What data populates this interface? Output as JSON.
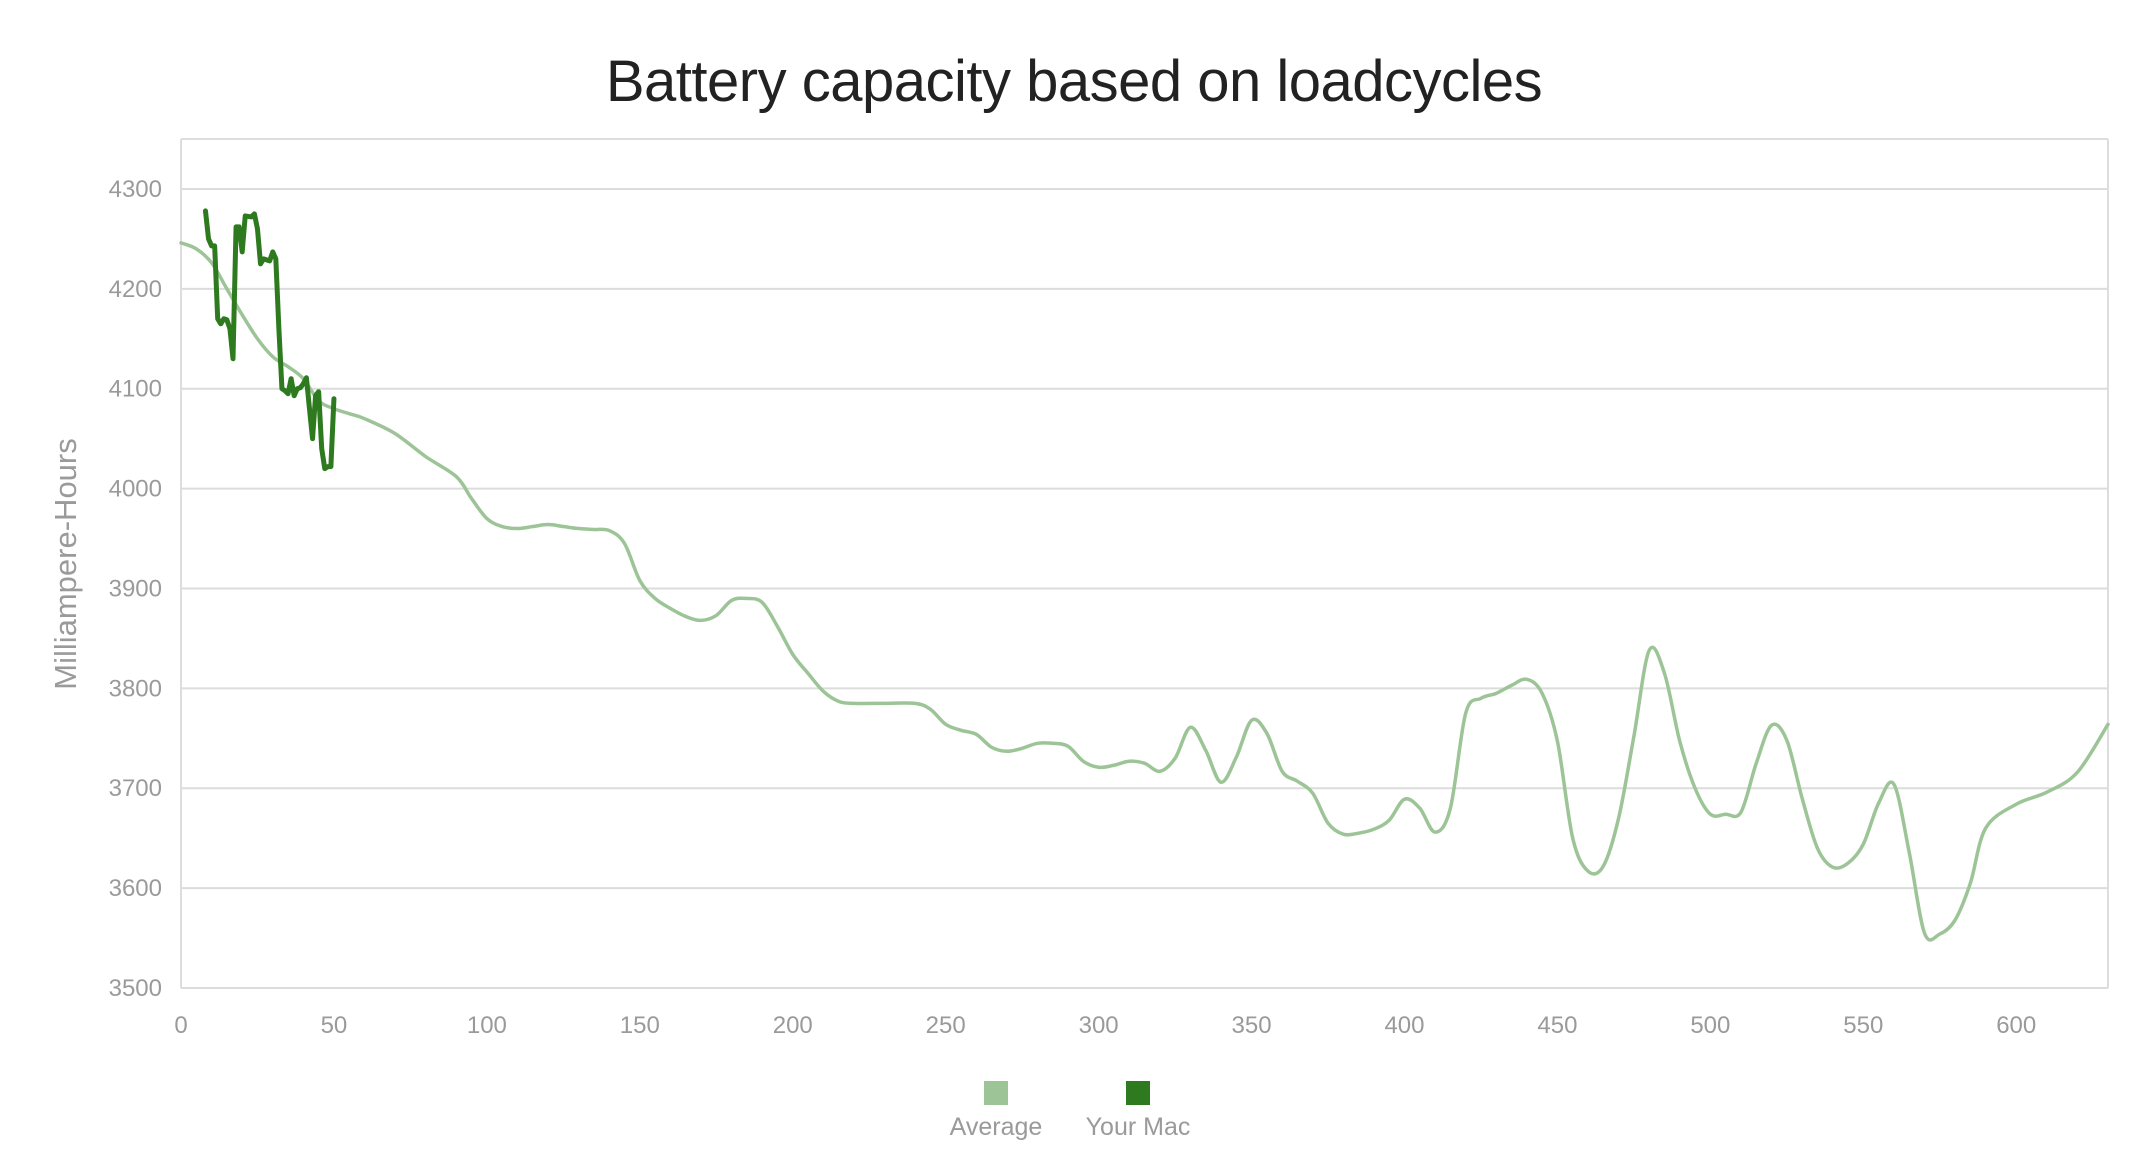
{
  "chart_data": {
    "type": "line",
    "title": "Battery capacity based on loadcycles",
    "xlabel": "",
    "ylabel": "Milliampere-Hours",
    "xlim": [
      0,
      630
    ],
    "ylim": [
      3500,
      4350
    ],
    "x_ticks": [
      0,
      50,
      100,
      150,
      200,
      250,
      300,
      350,
      400,
      450,
      500,
      550,
      600
    ],
    "y_ticks": [
      3500,
      3600,
      3700,
      3800,
      3900,
      4000,
      4100,
      4200,
      4300
    ],
    "grid": true,
    "legend_position": "bottom-center",
    "series": [
      {
        "name": "Average",
        "color": "#9cc497",
        "points": [
          [
            0,
            4246
          ],
          [
            5,
            4240
          ],
          [
            10,
            4226
          ],
          [
            15,
            4200
          ],
          [
            20,
            4174
          ],
          [
            25,
            4150
          ],
          [
            30,
            4132
          ],
          [
            35,
            4122
          ],
          [
            40,
            4110
          ],
          [
            45,
            4088
          ],
          [
            50,
            4080
          ],
          [
            55,
            4075
          ],
          [
            60,
            4070
          ],
          [
            70,
            4055
          ],
          [
            80,
            4032
          ],
          [
            90,
            4012
          ],
          [
            95,
            3990
          ],
          [
            100,
            3970
          ],
          [
            105,
            3962
          ],
          [
            110,
            3960
          ],
          [
            115,
            3962
          ],
          [
            120,
            3964
          ],
          [
            125,
            3962
          ],
          [
            130,
            3960
          ],
          [
            135,
            3959
          ],
          [
            140,
            3958
          ],
          [
            145,
            3945
          ],
          [
            150,
            3908
          ],
          [
            155,
            3890
          ],
          [
            160,
            3880
          ],
          [
            165,
            3872
          ],
          [
            170,
            3868
          ],
          [
            175,
            3873
          ],
          [
            180,
            3888
          ],
          [
            185,
            3890
          ],
          [
            190,
            3886
          ],
          [
            195,
            3862
          ],
          [
            200,
            3834
          ],
          [
            205,
            3815
          ],
          [
            210,
            3797
          ],
          [
            215,
            3787
          ],
          [
            220,
            3785
          ],
          [
            230,
            3785
          ],
          [
            240,
            3785
          ],
          [
            245,
            3779
          ],
          [
            250,
            3764
          ],
          [
            255,
            3758
          ],
          [
            260,
            3754
          ],
          [
            265,
            3741
          ],
          [
            270,
            3737
          ],
          [
            275,
            3740
          ],
          [
            280,
            3745
          ],
          [
            285,
            3745
          ],
          [
            290,
            3742
          ],
          [
            295,
            3727
          ],
          [
            300,
            3721
          ],
          [
            305,
            3723
          ],
          [
            310,
            3727
          ],
          [
            315,
            3725
          ],
          [
            320,
            3717
          ],
          [
            325,
            3730
          ],
          [
            330,
            3761
          ],
          [
            335,
            3738
          ],
          [
            340,
            3706
          ],
          [
            345,
            3731
          ],
          [
            350,
            3768
          ],
          [
            355,
            3755
          ],
          [
            360,
            3717
          ],
          [
            365,
            3707
          ],
          [
            370,
            3695
          ],
          [
            375,
            3665
          ],
          [
            380,
            3654
          ],
          [
            385,
            3655
          ],
          [
            390,
            3659
          ],
          [
            395,
            3668
          ],
          [
            400,
            3689
          ],
          [
            405,
            3680
          ],
          [
            410,
            3656
          ],
          [
            415,
            3680
          ],
          [
            420,
            3775
          ],
          [
            425,
            3790
          ],
          [
            430,
            3795
          ],
          [
            435,
            3803
          ],
          [
            440,
            3809
          ],
          [
            445,
            3795
          ],
          [
            450,
            3747
          ],
          [
            455,
            3650
          ],
          [
            460,
            3617
          ],
          [
            465,
            3622
          ],
          [
            470,
            3670
          ],
          [
            475,
            3752
          ],
          [
            480,
            3838
          ],
          [
            485,
            3815
          ],
          [
            490,
            3747
          ],
          [
            495,
            3700
          ],
          [
            500,
            3674
          ],
          [
            505,
            3674
          ],
          [
            510,
            3676
          ],
          [
            515,
            3725
          ],
          [
            520,
            3763
          ],
          [
            525,
            3748
          ],
          [
            530,
            3690
          ],
          [
            535,
            3640
          ],
          [
            540,
            3621
          ],
          [
            545,
            3625
          ],
          [
            550,
            3644
          ],
          [
            555,
            3685
          ],
          [
            560,
            3704
          ],
          [
            565,
            3636
          ],
          [
            570,
            3555
          ],
          [
            575,
            3554
          ],
          [
            580,
            3568
          ],
          [
            585,
            3605
          ],
          [
            590,
            3660
          ],
          [
            600,
            3684
          ],
          [
            610,
            3696
          ],
          [
            620,
            3716
          ],
          [
            630,
            3764
          ]
        ]
      },
      {
        "name": "Your Mac",
        "color": "#2d7a1f",
        "points": [
          [
            8,
            4278
          ],
          [
            9,
            4250
          ],
          [
            10,
            4243
          ],
          [
            11,
            4243
          ],
          [
            12,
            4170
          ],
          [
            13,
            4165
          ],
          [
            14,
            4170
          ],
          [
            15,
            4169
          ],
          [
            16,
            4160
          ],
          [
            17,
            4130
          ],
          [
            18,
            4262
          ],
          [
            19,
            4262
          ],
          [
            20,
            4237
          ],
          [
            21,
            4273
          ],
          [
            23,
            4272
          ],
          [
            24,
            4275
          ],
          [
            25,
            4260
          ],
          [
            26,
            4225
          ],
          [
            27,
            4230
          ],
          [
            29,
            4228
          ],
          [
            30,
            4237
          ],
          [
            31,
            4230
          ],
          [
            32,
            4160
          ],
          [
            33,
            4100
          ],
          [
            34,
            4098
          ],
          [
            35,
            4095
          ],
          [
            36,
            4110
          ],
          [
            37,
            4093
          ],
          [
            38,
            4100
          ],
          [
            39,
            4101
          ],
          [
            40,
            4105
          ],
          [
            41,
            4111
          ],
          [
            42,
            4080
          ],
          [
            43,
            4050
          ],
          [
            44,
            4093
          ],
          [
            45,
            4097
          ],
          [
            46,
            4040
          ],
          [
            47,
            4020
          ],
          [
            48,
            4022
          ],
          [
            49,
            4022
          ],
          [
            50,
            4090
          ]
        ]
      }
    ]
  }
}
